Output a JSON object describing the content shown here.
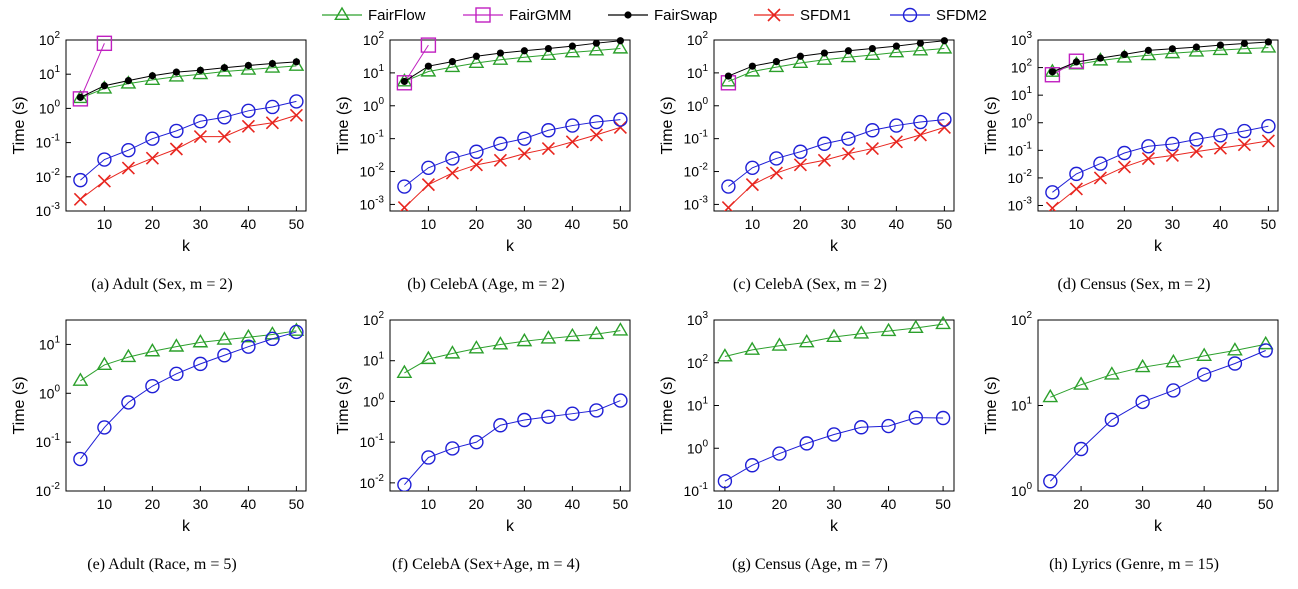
{
  "legend": {
    "series": [
      {
        "name": "FairFlow",
        "color": "#2ca02c",
        "marker": "triangle"
      },
      {
        "name": "FairGMM",
        "color": "#c020c0",
        "marker": "square"
      },
      {
        "name": "FairSwap",
        "color": "#000000",
        "marker": "dot"
      },
      {
        "name": "SFDM1",
        "color": "#e8261f",
        "marker": "x"
      },
      {
        "name": "SFDM2",
        "color": "#1f1fd6",
        "marker": "circle"
      }
    ]
  },
  "chart_data": [
    {
      "type": "line",
      "log_y": true,
      "caption_label": "(a)",
      "caption_title": "Adult (Sex, m = 2)",
      "xlabel": "k",
      "ylabel": "Time (s)",
      "xlim": [
        2,
        52
      ],
      "xticks": [
        10,
        20,
        30,
        40,
        50
      ],
      "ylim": [
        -3,
        2
      ],
      "yticks": [
        -3,
        -2,
        -1,
        0,
        1,
        2
      ],
      "series": [
        {
          "name": "FairFlow",
          "x": [
            5,
            10,
            15,
            20,
            25,
            30,
            35,
            40,
            45,
            50
          ],
          "y": [
            2,
            3.8,
            5.3,
            6.8,
            8.5,
            10,
            12,
            13.5,
            15.5,
            17.5
          ]
        },
        {
          "name": "FairGMM",
          "x": [
            5,
            10
          ],
          "y": [
            1.9,
            80
          ]
        },
        {
          "name": "FairSwap",
          "x": [
            5,
            10,
            15,
            20,
            25,
            30,
            35,
            40,
            45,
            50
          ],
          "y": [
            2.1,
            4.6,
            6.5,
            9,
            11.5,
            13,
            15.5,
            18,
            20.5,
            23
          ]
        },
        {
          "name": "SFDM1",
          "x": [
            5,
            10,
            15,
            20,
            25,
            30,
            35,
            40,
            45,
            50
          ],
          "y": [
            0.0022,
            0.0075,
            0.018,
            0.035,
            0.065,
            0.15,
            0.15,
            0.3,
            0.38,
            0.63
          ]
        },
        {
          "name": "SFDM2",
          "x": [
            5,
            10,
            15,
            20,
            25,
            30,
            35,
            40,
            45,
            50
          ],
          "y": [
            0.008,
            0.032,
            0.06,
            0.13,
            0.22,
            0.42,
            0.55,
            0.85,
            1.1,
            1.6
          ]
        }
      ]
    },
    {
      "type": "line",
      "log_y": true,
      "caption_label": "(b)",
      "caption_title": "CelebA (Age, m = 2)",
      "xlabel": "k",
      "ylabel": "Time (s)",
      "xlim": [
        2,
        52
      ],
      "xticks": [
        10,
        20,
        30,
        40,
        50
      ],
      "ylim": [
        -3.2,
        2
      ],
      "yticks": [
        -3,
        -2,
        -1,
        0,
        1,
        2
      ],
      "series": [
        {
          "name": "FairFlow",
          "x": [
            5,
            10,
            15,
            20,
            25,
            30,
            35,
            40,
            45,
            50
          ],
          "y": [
            5.5,
            11,
            15,
            20,
            25,
            30,
            35,
            42,
            48,
            55
          ]
        },
        {
          "name": "FairGMM",
          "x": [
            5,
            10
          ],
          "y": [
            5,
            70
          ]
        },
        {
          "name": "FairSwap",
          "x": [
            5,
            10,
            15,
            20,
            25,
            30,
            35,
            40,
            45,
            50
          ],
          "y": [
            5.5,
            16,
            22,
            32,
            40,
            47,
            55,
            65,
            80,
            95
          ]
        },
        {
          "name": "SFDM1",
          "x": [
            5,
            10,
            15,
            20,
            25,
            30,
            35,
            40,
            45,
            50
          ],
          "y": [
            0.0008,
            0.004,
            0.009,
            0.016,
            0.022,
            0.035,
            0.05,
            0.08,
            0.13,
            0.22
          ]
        },
        {
          "name": "SFDM2",
          "x": [
            5,
            10,
            15,
            20,
            25,
            30,
            35,
            40,
            45,
            50
          ],
          "y": [
            0.0035,
            0.013,
            0.025,
            0.04,
            0.07,
            0.1,
            0.18,
            0.25,
            0.32,
            0.38
          ]
        }
      ]
    },
    {
      "type": "line",
      "log_y": true,
      "caption_label": "(c)",
      "caption_title": "CelebA (Sex, m = 2)",
      "xlabel": "k",
      "ylabel": "Time (s)",
      "xlim": [
        2,
        52
      ],
      "xticks": [
        10,
        20,
        30,
        40,
        50
      ],
      "ylim": [
        -3.2,
        2
      ],
      "yticks": [
        -3,
        -2,
        -1,
        0,
        1,
        2
      ],
      "series": [
        {
          "name": "FairFlow",
          "x": [
            5,
            10,
            15,
            20,
            25,
            30,
            35,
            40,
            45,
            50
          ],
          "y": [
            5.5,
            11,
            15,
            20,
            25,
            30,
            35,
            42,
            48,
            55
          ]
        },
        {
          "name": "FairGMM",
          "x": [
            5
          ],
          "y": [
            5
          ]
        },
        {
          "name": "FairSwap",
          "x": [
            5,
            10,
            15,
            20,
            25,
            30,
            35,
            40,
            45,
            50
          ],
          "y": [
            8,
            16,
            22,
            32,
            40,
            47,
            55,
            65,
            80,
            95
          ]
        },
        {
          "name": "SFDM1",
          "x": [
            5,
            10,
            15,
            20,
            25,
            30,
            35,
            40,
            45,
            50
          ],
          "y": [
            0.0008,
            0.004,
            0.009,
            0.016,
            0.022,
            0.035,
            0.05,
            0.08,
            0.13,
            0.22
          ]
        },
        {
          "name": "SFDM2",
          "x": [
            5,
            10,
            15,
            20,
            25,
            30,
            35,
            40,
            45,
            50
          ],
          "y": [
            0.0035,
            0.013,
            0.025,
            0.04,
            0.07,
            0.1,
            0.18,
            0.25,
            0.32,
            0.38
          ]
        }
      ]
    },
    {
      "type": "line",
      "log_y": true,
      "caption_label": "(d)",
      "caption_title": "Census (Sex, m = 2)",
      "xlabel": "k",
      "ylabel": "Time (s)",
      "xlim": [
        2,
        52
      ],
      "xticks": [
        10,
        20,
        30,
        40,
        50
      ],
      "ylim": [
        -3.2,
        3
      ],
      "yticks": [
        -3,
        -2,
        -1,
        0,
        1,
        2,
        3
      ],
      "series": [
        {
          "name": "FairFlow",
          "x": [
            5,
            10,
            15,
            20,
            25,
            30,
            35,
            40,
            45,
            50
          ],
          "y": [
            70,
            130,
            180,
            230,
            280,
            330,
            380,
            430,
            480,
            530
          ]
        },
        {
          "name": "FairGMM",
          "x": [
            5,
            10
          ],
          "y": [
            55,
            170
          ]
        },
        {
          "name": "FairSwap",
          "x": [
            5,
            10,
            15,
            20,
            25,
            30,
            35,
            40,
            45,
            50
          ],
          "y": [
            70,
            160,
            220,
            300,
            420,
            480,
            550,
            650,
            750,
            850
          ]
        },
        {
          "name": "SFDM1",
          "x": [
            5,
            10,
            15,
            20,
            25,
            30,
            35,
            40,
            45,
            50
          ],
          "y": [
            0.0008,
            0.004,
            0.01,
            0.025,
            0.05,
            0.065,
            0.09,
            0.12,
            0.16,
            0.22
          ]
        },
        {
          "name": "SFDM2",
          "x": [
            5,
            10,
            15,
            20,
            25,
            30,
            35,
            40,
            45,
            50
          ],
          "y": [
            0.003,
            0.014,
            0.033,
            0.08,
            0.14,
            0.17,
            0.25,
            0.35,
            0.5,
            0.75
          ]
        }
      ]
    },
    {
      "type": "line",
      "log_y": true,
      "caption_label": "(e)",
      "caption_title": "Adult (Race, m = 5)",
      "xlabel": "k",
      "ylabel": "Time (s)",
      "xlim": [
        2,
        52
      ],
      "xticks": [
        10,
        20,
        30,
        40,
        50
      ],
      "ylim": [
        -2,
        1.5
      ],
      "yticks": [
        -2,
        -1,
        0,
        1
      ],
      "series": [
        {
          "name": "FairFlow",
          "x": [
            5,
            10,
            15,
            20,
            25,
            30,
            35,
            40,
            45,
            50
          ],
          "y": [
            1.8,
            3.8,
            5.5,
            7.2,
            9,
            11,
            12.5,
            14,
            16,
            19
          ]
        },
        {
          "name": "SFDM2",
          "x": [
            5,
            10,
            15,
            20,
            25,
            30,
            35,
            40,
            45,
            50
          ],
          "y": [
            0.045,
            0.2,
            0.65,
            1.4,
            2.5,
            4,
            6,
            9,
            13,
            18
          ]
        }
      ]
    },
    {
      "type": "line",
      "log_y": true,
      "caption_label": "(f)",
      "caption_title": "CelebA (Sex+Age, m = 4)",
      "xlabel": "k",
      "ylabel": "Time (s)",
      "xlim": [
        2,
        52
      ],
      "xticks": [
        10,
        20,
        30,
        40,
        50
      ],
      "ylim": [
        -2.2,
        2
      ],
      "yticks": [
        -2,
        -1,
        0,
        1,
        2
      ],
      "series": [
        {
          "name": "FairFlow",
          "x": [
            5,
            10,
            15,
            20,
            25,
            30,
            35,
            40,
            45,
            50
          ],
          "y": [
            5,
            11,
            15,
            20,
            25,
            30,
            35,
            40,
            45,
            55
          ]
        },
        {
          "name": "SFDM2",
          "x": [
            5,
            10,
            15,
            20,
            25,
            30,
            35,
            40,
            45,
            50
          ],
          "y": [
            0.009,
            0.042,
            0.07,
            0.1,
            0.26,
            0.35,
            0.42,
            0.5,
            0.6,
            1.05
          ]
        }
      ]
    },
    {
      "type": "line",
      "log_y": true,
      "caption_label": "(g)",
      "caption_title": "Census (Age, m = 7)",
      "xlabel": "k",
      "ylabel": "Time (s)",
      "xlim": [
        8,
        52
      ],
      "xticks": [
        10,
        20,
        30,
        40,
        50
      ],
      "ylim": [
        -1,
        3
      ],
      "yticks": [
        -1,
        0,
        1,
        2,
        3
      ],
      "series": [
        {
          "name": "FairFlow",
          "x": [
            10,
            15,
            20,
            25,
            30,
            35,
            40,
            45,
            50
          ],
          "y": [
            140,
            200,
            250,
            300,
            400,
            480,
            550,
            650,
            800
          ]
        },
        {
          "name": "SFDM2",
          "x": [
            10,
            15,
            20,
            25,
            30,
            35,
            40,
            45,
            50
          ],
          "y": [
            0.17,
            0.4,
            0.75,
            1.3,
            2.1,
            3.1,
            3.3,
            5.2,
            5.1
          ]
        }
      ]
    },
    {
      "type": "line",
      "log_y": true,
      "caption_label": "(h)",
      "caption_title": "Lyrics (Genre, m = 15)",
      "xlabel": "k",
      "ylabel": "Time (s)",
      "xlim": [
        13,
        52
      ],
      "xticks": [
        20,
        30,
        40,
        50
      ],
      "ylim": [
        0,
        2
      ],
      "yticks": [
        0,
        1,
        2
      ],
      "series": [
        {
          "name": "FairFlow",
          "x": [
            15,
            20,
            25,
            30,
            35,
            40,
            45,
            50
          ],
          "y": [
            12.5,
            17.5,
            23,
            28,
            32,
            38,
            44,
            52
          ]
        },
        {
          "name": "SFDM2",
          "x": [
            15,
            20,
            25,
            30,
            35,
            40,
            45,
            50
          ],
          "y": [
            1.3,
            3.1,
            6.8,
            11,
            15,
            23,
            31,
            44
          ]
        }
      ]
    }
  ]
}
